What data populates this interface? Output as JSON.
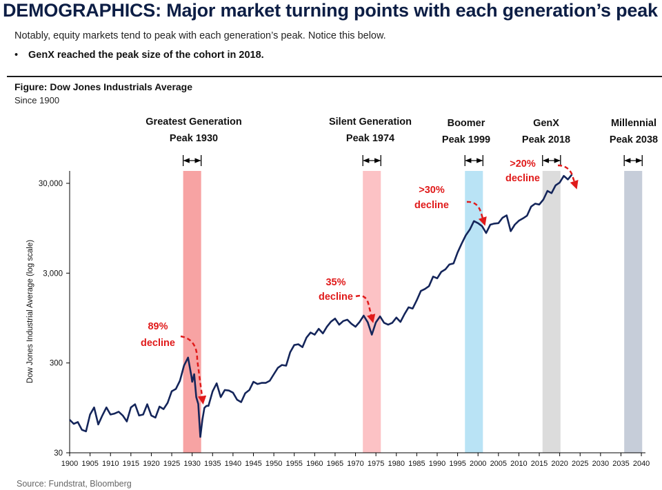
{
  "header": {
    "title": "DEMOGRAPHICS: Major market turning points with each generation’s peak",
    "subtitle": "Notably, equity markets tend to peak with each generation’s peak. Notice this below.",
    "bullet_marker": "•",
    "bullet": "GenX reached the peak size of the cohort in 2018."
  },
  "figure": {
    "title": "Figure: Dow Jones Industrials Average",
    "subtitle": "Since 1900",
    "source": "Source: Fundstrat, Bloomberg"
  },
  "chart_data": {
    "type": "line",
    "ylabel": "Dow Jones Industrial Average (log scale)",
    "xlabel": "",
    "y_scale": "log",
    "ylim": [
      30,
      60000
    ],
    "xlim": [
      1900,
      2041
    ],
    "x_ticks": [
      1900,
      1905,
      1910,
      1915,
      1920,
      1925,
      1930,
      1935,
      1940,
      1945,
      1950,
      1955,
      1960,
      1965,
      1970,
      1975,
      1980,
      1985,
      1990,
      1995,
      2000,
      2005,
      2010,
      2015,
      2020,
      2025,
      2030,
      2035,
      2040
    ],
    "y_ticks": [
      {
        "value": 30,
        "label": "30"
      },
      {
        "value": 300,
        "label": "300"
      },
      {
        "value": 3000,
        "label": "3,000"
      },
      {
        "value": 30000,
        "label": "30,000"
      }
    ],
    "grid": false,
    "line_color": "#14255a",
    "series": [
      {
        "x": [
          1900,
          1901,
          1902,
          1903,
          1904,
          1905,
          1906,
          1907,
          1908,
          1909,
          1910,
          1911,
          1912,
          1913,
          1914,
          1915,
          1916,
          1917,
          1918,
          1919,
          1920,
          1921,
          1922,
          1923,
          1924,
          1925,
          1926,
          1927,
          1928,
          1929,
          1929.8,
          1930,
          1930.5,
          1931,
          1931.5,
          1932,
          1932.5,
          1933,
          1933.5,
          1934,
          1935,
          1936,
          1937,
          1938,
          1939,
          1940,
          1941,
          1942,
          1943,
          1944,
          1945,
          1946,
          1947,
          1948,
          1949,
          1950,
          1951,
          1952,
          1953,
          1954,
          1955,
          1956,
          1957,
          1958,
          1959,
          1960,
          1961,
          1962,
          1963,
          1964,
          1965,
          1966,
          1967,
          1968,
          1969,
          1970,
          1971,
          1972,
          1973,
          1974,
          1975,
          1976,
          1977,
          1978,
          1979,
          1980,
          1981,
          1982,
          1983,
          1984,
          1985,
          1986,
          1987,
          1988,
          1989,
          1990,
          1991,
          1992,
          1993,
          1994,
          1995,
          1996,
          1997,
          1998,
          1999,
          2000,
          2001,
          2002,
          2003,
          2004,
          2005,
          2006,
          2007,
          2008,
          2009,
          2010,
          2011,
          2012,
          2013,
          2014,
          2015,
          2016,
          2017,
          2018,
          2019,
          2020,
          2021,
          2022,
          2023
        ],
        "y": [
          70,
          63,
          66,
          54,
          52,
          80,
          96,
          62,
          78,
          96,
          80,
          82,
          86,
          78,
          67,
          96,
          104,
          78,
          80,
          104,
          78,
          74,
          98,
          92,
          108,
          145,
          154,
          190,
          280,
          345,
          215,
          185,
          225,
          125,
          105,
          45,
          70,
          95,
          100,
          100,
          145,
          178,
          125,
          150,
          148,
          140,
          117,
          110,
          138,
          150,
          185,
          175,
          180,
          180,
          190,
          225,
          265,
          285,
          280,
          395,
          475,
          485,
          450,
          575,
          655,
          620,
          720,
          640,
          760,
          865,
          935,
          800,
          880,
          910,
          820,
          760,
          860,
          1010,
          850,
          620,
          850,
          990,
          840,
          800,
          840,
          960,
          860,
          1050,
          1250,
          1210,
          1500,
          1900,
          2000,
          2150,
          2750,
          2630,
          3100,
          3300,
          3750,
          3850,
          5100,
          6400,
          7900,
          9200,
          11400,
          10800,
          10000,
          8400,
          10400,
          10700,
          10800,
          12400,
          13200,
          8800,
          10400,
          11500,
          12200,
          13100,
          16500,
          17800,
          17400,
          19800,
          24700,
          23300,
          28500,
          30600,
          36300,
          33100,
          37600
        ]
      }
    ],
    "generations": [
      {
        "name": "Greatest Generation",
        "peak_label": "Peak 1930",
        "peak_year": 1930,
        "color": "#f7a3a3"
      },
      {
        "name": "Silent Generation",
        "peak_label": "Peak 1974",
        "peak_year": 1974,
        "color": "#fcc2c5"
      },
      {
        "name": "Boomer",
        "peak_label": "Peak 1999",
        "peak_year": 1999,
        "color": "#b9e3f5"
      },
      {
        "name": "GenX",
        "peak_label": "Peak 2018",
        "peak_year": 2018,
        "color": "#dcdcdc"
      },
      {
        "name": "Millennial",
        "peak_label": "Peak 2038",
        "peak_year": 2038,
        "color": "#c6cdd9"
      }
    ],
    "annotations": [
      {
        "line1": "89%",
        "line2": "decline"
      },
      {
        "line1": "35%",
        "line2": "decline"
      },
      {
        "line1": ">30%",
        "line2": "decline"
      },
      {
        "line1": ">20%",
        "line2": "decline"
      }
    ],
    "annotation_color": "#e01a1a"
  }
}
